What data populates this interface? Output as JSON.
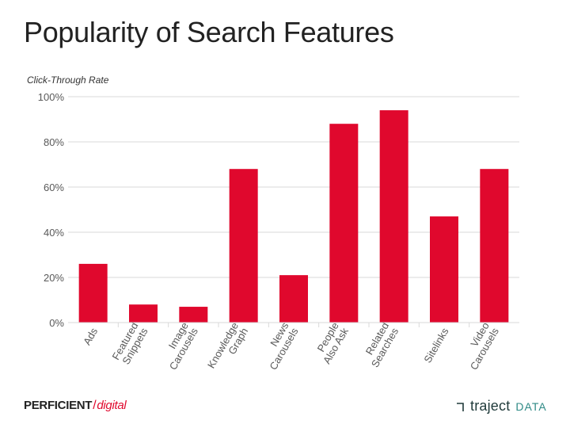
{
  "title": "Popularity of Search Features",
  "footer": {
    "left_brand": "PERFICIENT",
    "left_separator": "/",
    "left_brand_suffix": "digital",
    "right_brand": "traject",
    "right_brand_suffix": "DATA"
  },
  "colors": {
    "bar": "#e0082d",
    "grid": "#d9d9d9",
    "text": "#595959"
  },
  "chart_data": {
    "type": "bar",
    "ylabel": "Click-Through Rate",
    "ylim": [
      0,
      100
    ],
    "yticks": [
      0,
      20,
      40,
      60,
      80,
      100
    ],
    "ytick_labels": [
      "0%",
      "20%",
      "40%",
      "60%",
      "80%",
      "100%"
    ],
    "grid": true,
    "categories": [
      [
        "Ads"
      ],
      [
        "Featured",
        "Snippets"
      ],
      [
        "Image",
        "Carousels"
      ],
      [
        "Knowledge",
        "Graph"
      ],
      [
        "News",
        "Carousels"
      ],
      [
        "People",
        "Also Ask"
      ],
      [
        "Related",
        "Searches"
      ],
      [
        "Sitelinks"
      ],
      [
        "Video",
        "Carousels"
      ]
    ],
    "values": [
      26,
      8,
      7,
      68,
      21,
      88,
      94,
      47,
      68
    ]
  }
}
